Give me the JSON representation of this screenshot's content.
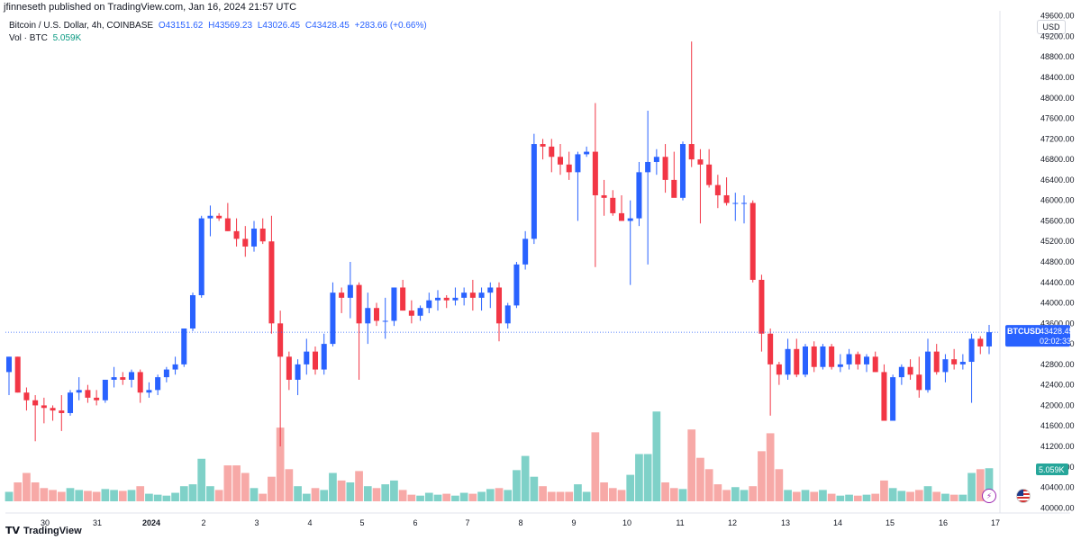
{
  "header": {
    "publisher": "jfinneseth published on TradingView.com, Jan 16, 2024 21:57 UTC"
  },
  "legend": {
    "symbol": "Bitcoin / U.S. Dollar, 4h, COINBASE",
    "open": "O43151.62",
    "high": "H43569.23",
    "low": "L43026.45",
    "close": "C43428.45",
    "change": "+283.66 (+0.66%)",
    "vol_label": "Vol · BTC",
    "vol_value": "5.059K"
  },
  "currency_button": "USD",
  "footer": {
    "brand": "TradingView"
  },
  "colors": {
    "up": "#2962ff",
    "down": "#f23645",
    "vol_up": "#7fd1c8",
    "vol_down": "#f7a9a7"
  },
  "chart_data": {
    "type": "candlestick",
    "y_axis": {
      "ticks": [
        "49600.00",
        "49200.00",
        "48800.00",
        "48400.00",
        "48000.00",
        "47600.00",
        "47200.00",
        "46800.00",
        "46400.00",
        "46000.00",
        "45600.00",
        "45200.00",
        "44800.00",
        "44400.00",
        "44000.00",
        "43600.00",
        "43200.00",
        "42800.00",
        "42400.00",
        "42000.00",
        "41600.00",
        "41200.00",
        "40800.00",
        "40400.00",
        "40000.00"
      ],
      "range": [
        39900,
        49700
      ]
    },
    "x_axis": {
      "labels": [
        "30",
        "31",
        "2024",
        "2",
        "3",
        "4",
        "5",
        "6",
        "7",
        "8",
        "9",
        "10",
        "11",
        "12",
        "13",
        "14",
        "15",
        "16",
        "17"
      ]
    },
    "last_price_label": {
      "symbol": "BTCUSD",
      "price": "43428.45",
      "countdown": "02:02:33",
      "value": 43428.45
    },
    "volume_label": {
      "value": "5.059K"
    },
    "candles": [
      {
        "o": 42650,
        "h": 42950,
        "l": 42200,
        "c": 42950,
        "v": 10
      },
      {
        "o": 42950,
        "h": 42950,
        "l": 42250,
        "c": 42250,
        "v": 20
      },
      {
        "o": 42250,
        "h": 42350,
        "l": 41900,
        "c": 42100,
        "v": 30
      },
      {
        "o": 42100,
        "h": 42200,
        "l": 41300,
        "c": 42000,
        "v": 20
      },
      {
        "o": 42000,
        "h": 42150,
        "l": 41650,
        "c": 41950,
        "v": 14
      },
      {
        "o": 41950,
        "h": 42000,
        "l": 41700,
        "c": 41900,
        "v": 12
      },
      {
        "o": 41900,
        "h": 42200,
        "l": 41500,
        "c": 41850,
        "v": 10
      },
      {
        "o": 41850,
        "h": 42300,
        "l": 41800,
        "c": 42250,
        "v": 14
      },
      {
        "o": 42250,
        "h": 42550,
        "l": 42100,
        "c": 42300,
        "v": 12
      },
      {
        "o": 42300,
        "h": 42400,
        "l": 42050,
        "c": 42150,
        "v": 11
      },
      {
        "o": 42150,
        "h": 42300,
        "l": 42000,
        "c": 42100,
        "v": 10
      },
      {
        "o": 42100,
        "h": 42500,
        "l": 42050,
        "c": 42500,
        "v": 13
      },
      {
        "o": 42500,
        "h": 42750,
        "l": 42350,
        "c": 42550,
        "v": 12
      },
      {
        "o": 42550,
        "h": 42650,
        "l": 42400,
        "c": 42500,
        "v": 11
      },
      {
        "o": 42500,
        "h": 42700,
        "l": 42350,
        "c": 42650,
        "v": 12
      },
      {
        "o": 42650,
        "h": 42700,
        "l": 42050,
        "c": 42250,
        "v": 16
      },
      {
        "o": 42250,
        "h": 42450,
        "l": 42150,
        "c": 42300,
        "v": 8
      },
      {
        "o": 42300,
        "h": 42600,
        "l": 42200,
        "c": 42550,
        "v": 7
      },
      {
        "o": 42550,
        "h": 42750,
        "l": 42450,
        "c": 42700,
        "v": 6
      },
      {
        "o": 42700,
        "h": 42950,
        "l": 42600,
        "c": 42800,
        "v": 9
      },
      {
        "o": 42800,
        "h": 43500,
        "l": 42750,
        "c": 43500,
        "v": 16
      },
      {
        "o": 43500,
        "h": 44200,
        "l": 43450,
        "c": 44150,
        "v": 18
      },
      {
        "o": 44150,
        "h": 45700,
        "l": 44100,
        "c": 45650,
        "v": 45
      },
      {
        "o": 45650,
        "h": 45900,
        "l": 45300,
        "c": 45700,
        "v": 16
      },
      {
        "o": 45700,
        "h": 45750,
        "l": 45600,
        "c": 45650,
        "v": 12
      },
      {
        "o": 45650,
        "h": 45950,
        "l": 45400,
        "c": 45400,
        "v": 38
      },
      {
        "o": 45400,
        "h": 45650,
        "l": 45100,
        "c": 45250,
        "v": 38
      },
      {
        "o": 45250,
        "h": 45500,
        "l": 44900,
        "c": 45100,
        "v": 30
      },
      {
        "o": 45100,
        "h": 45600,
        "l": 45000,
        "c": 45450,
        "v": 14
      },
      {
        "o": 45450,
        "h": 45650,
        "l": 45150,
        "c": 45200,
        "v": 8
      },
      {
        "o": 45200,
        "h": 45700,
        "l": 43400,
        "c": 43600,
        "v": 26
      },
      {
        "o": 43600,
        "h": 43850,
        "l": 41200,
        "c": 42950,
        "v": 78
      },
      {
        "o": 42950,
        "h": 43050,
        "l": 42300,
        "c": 42500,
        "v": 34
      },
      {
        "o": 42500,
        "h": 42900,
        "l": 42200,
        "c": 42800,
        "v": 16
      },
      {
        "o": 42800,
        "h": 43300,
        "l": 42600,
        "c": 43050,
        "v": 8
      },
      {
        "o": 43050,
        "h": 43150,
        "l": 42600,
        "c": 42700,
        "v": 14
      },
      {
        "o": 42700,
        "h": 43400,
        "l": 42600,
        "c": 43200,
        "v": 12
      },
      {
        "o": 43200,
        "h": 44400,
        "l": 43150,
        "c": 44200,
        "v": 30
      },
      {
        "o": 44200,
        "h": 44300,
        "l": 43800,
        "c": 44100,
        "v": 22
      },
      {
        "o": 44100,
        "h": 44800,
        "l": 43700,
        "c": 44350,
        "v": 20
      },
      {
        "o": 44350,
        "h": 44400,
        "l": 42500,
        "c": 43600,
        "v": 32
      },
      {
        "o": 43600,
        "h": 44200,
        "l": 43200,
        "c": 43900,
        "v": 16
      },
      {
        "o": 43900,
        "h": 44000,
        "l": 43550,
        "c": 43650,
        "v": 14
      },
      {
        "o": 43650,
        "h": 44100,
        "l": 43300,
        "c": 43650,
        "v": 18
      },
      {
        "o": 43650,
        "h": 44300,
        "l": 43550,
        "c": 44300,
        "v": 22
      },
      {
        "o": 44300,
        "h": 44450,
        "l": 43850,
        "c": 43850,
        "v": 12
      },
      {
        "o": 43850,
        "h": 44050,
        "l": 43600,
        "c": 43750,
        "v": 7
      },
      {
        "o": 43750,
        "h": 43950,
        "l": 43650,
        "c": 43900,
        "v": 6
      },
      {
        "o": 43900,
        "h": 44200,
        "l": 43800,
        "c": 44050,
        "v": 9
      },
      {
        "o": 44050,
        "h": 44250,
        "l": 43850,
        "c": 44100,
        "v": 7
      },
      {
        "o": 44100,
        "h": 44150,
        "l": 43900,
        "c": 44050,
        "v": 8
      },
      {
        "o": 44050,
        "h": 44300,
        "l": 43950,
        "c": 44100,
        "v": 6
      },
      {
        "o": 44100,
        "h": 44300,
        "l": 43950,
        "c": 44200,
        "v": 9
      },
      {
        "o": 44200,
        "h": 44450,
        "l": 43850,
        "c": 44100,
        "v": 8
      },
      {
        "o": 44100,
        "h": 44300,
        "l": 43850,
        "c": 44200,
        "v": 10
      },
      {
        "o": 44200,
        "h": 44400,
        "l": 43900,
        "c": 44300,
        "v": 13
      },
      {
        "o": 44300,
        "h": 44400,
        "l": 43250,
        "c": 43600,
        "v": 14
      },
      {
        "o": 43600,
        "h": 44000,
        "l": 43500,
        "c": 43950,
        "v": 12
      },
      {
        "o": 43950,
        "h": 44800,
        "l": 43900,
        "c": 44750,
        "v": 33
      },
      {
        "o": 44750,
        "h": 45400,
        "l": 44650,
        "c": 45250,
        "v": 48
      },
      {
        "o": 45250,
        "h": 47300,
        "l": 45150,
        "c": 47100,
        "v": 26
      },
      {
        "o": 47100,
        "h": 47200,
        "l": 46800,
        "c": 47050,
        "v": 16
      },
      {
        "o": 47050,
        "h": 47200,
        "l": 46550,
        "c": 46850,
        "v": 10
      },
      {
        "o": 46850,
        "h": 47100,
        "l": 46500,
        "c": 46700,
        "v": 10
      },
      {
        "o": 46700,
        "h": 46950,
        "l": 46400,
        "c": 46550,
        "v": 10
      },
      {
        "o": 46550,
        "h": 46950,
        "l": 45600,
        "c": 46900,
        "v": 18
      },
      {
        "o": 46900,
        "h": 47050,
        "l": 46850,
        "c": 46950,
        "v": 10
      },
      {
        "o": 46950,
        "h": 47900,
        "l": 44700,
        "c": 46100,
        "v": 73
      },
      {
        "o": 46100,
        "h": 46400,
        "l": 45700,
        "c": 46050,
        "v": 20
      },
      {
        "o": 46050,
        "h": 46200,
        "l": 45700,
        "c": 45750,
        "v": 14
      },
      {
        "o": 45750,
        "h": 46100,
        "l": 45600,
        "c": 45600,
        "v": 12
      },
      {
        "o": 45600,
        "h": 46000,
        "l": 44350,
        "c": 45650,
        "v": 28
      },
      {
        "o": 45650,
        "h": 46750,
        "l": 45500,
        "c": 46550,
        "v": 50
      },
      {
        "o": 46550,
        "h": 47750,
        "l": 44750,
        "c": 46750,
        "v": 50
      },
      {
        "o": 46750,
        "h": 47000,
        "l": 46500,
        "c": 46850,
        "v": 95
      },
      {
        "o": 46850,
        "h": 47100,
        "l": 46150,
        "c": 46400,
        "v": 20
      },
      {
        "o": 46400,
        "h": 46950,
        "l": 46100,
        "c": 46050,
        "v": 14
      },
      {
        "o": 46050,
        "h": 47150,
        "l": 46000,
        "c": 47100,
        "v": 13
      },
      {
        "o": 47100,
        "h": 49100,
        "l": 46650,
        "c": 46800,
        "v": 76
      },
      {
        "o": 46800,
        "h": 47000,
        "l": 45550,
        "c": 46700,
        "v": 46
      },
      {
        "o": 46700,
        "h": 47000,
        "l": 46250,
        "c": 46300,
        "v": 34
      },
      {
        "o": 46300,
        "h": 46500,
        "l": 45850,
        "c": 46100,
        "v": 18
      },
      {
        "o": 46100,
        "h": 46450,
        "l": 45900,
        "c": 45950,
        "v": 12
      },
      {
        "o": 45950,
        "h": 46150,
        "l": 45600,
        "c": 45950,
        "v": 15
      },
      {
        "o": 45950,
        "h": 46100,
        "l": 45550,
        "c": 45950,
        "v": 12
      },
      {
        "o": 45950,
        "h": 46000,
        "l": 44400,
        "c": 44450,
        "v": 16
      },
      {
        "o": 44450,
        "h": 44550,
        "l": 43050,
        "c": 43400,
        "v": 53
      },
      {
        "o": 43400,
        "h": 43500,
        "l": 41800,
        "c": 42800,
        "v": 72
      },
      {
        "o": 42800,
        "h": 42850,
        "l": 42400,
        "c": 42600,
        "v": 34
      },
      {
        "o": 42600,
        "h": 43300,
        "l": 42500,
        "c": 43100,
        "v": 12
      },
      {
        "o": 43100,
        "h": 43300,
        "l": 42550,
        "c": 42600,
        "v": 10
      },
      {
        "o": 42600,
        "h": 43200,
        "l": 42550,
        "c": 43150,
        "v": 12
      },
      {
        "o": 43150,
        "h": 43250,
        "l": 42650,
        "c": 42750,
        "v": 10
      },
      {
        "o": 42750,
        "h": 43200,
        "l": 42700,
        "c": 43150,
        "v": 12
      },
      {
        "o": 43150,
        "h": 43200,
        "l": 42700,
        "c": 42750,
        "v": 8
      },
      {
        "o": 42750,
        "h": 43000,
        "l": 42650,
        "c": 42800,
        "v": 6
      },
      {
        "o": 42800,
        "h": 43100,
        "l": 42700,
        "c": 43000,
        "v": 7
      },
      {
        "o": 43000,
        "h": 43050,
        "l": 42700,
        "c": 42800,
        "v": 6
      },
      {
        "o": 42800,
        "h": 43000,
        "l": 42650,
        "c": 42950,
        "v": 7
      },
      {
        "o": 42950,
        "h": 43050,
        "l": 42650,
        "c": 42650,
        "v": 8
      },
      {
        "o": 42650,
        "h": 42800,
        "l": 41700,
        "c": 41700,
        "v": 22
      },
      {
        "o": 41700,
        "h": 42600,
        "l": 41700,
        "c": 42550,
        "v": 14
      },
      {
        "o": 42550,
        "h": 42800,
        "l": 42400,
        "c": 42750,
        "v": 11
      },
      {
        "o": 42750,
        "h": 42900,
        "l": 42500,
        "c": 42600,
        "v": 10
      },
      {
        "o": 42600,
        "h": 42950,
        "l": 42150,
        "c": 42300,
        "v": 12
      },
      {
        "o": 42300,
        "h": 43300,
        "l": 42250,
        "c": 43050,
        "v": 16
      },
      {
        "o": 43050,
        "h": 43200,
        "l": 42600,
        "c": 42650,
        "v": 10
      },
      {
        "o": 42650,
        "h": 43000,
        "l": 42450,
        "c": 42900,
        "v": 8
      },
      {
        "o": 42900,
        "h": 43100,
        "l": 42700,
        "c": 42800,
        "v": 7
      },
      {
        "o": 42800,
        "h": 43000,
        "l": 42700,
        "c": 42850,
        "v": 7
      },
      {
        "o": 42850,
        "h": 43400,
        "l": 42050,
        "c": 43300,
        "v": 30
      },
      {
        "o": 43300,
        "h": 43350,
        "l": 43000,
        "c": 43150,
        "v": 34
      },
      {
        "o": 43150,
        "h": 43570,
        "l": 43000,
        "c": 43428,
        "v": 35
      }
    ]
  }
}
